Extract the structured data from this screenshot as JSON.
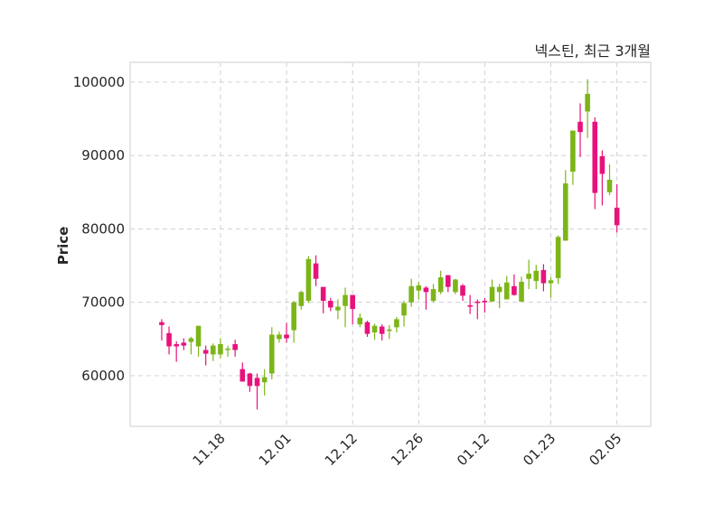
{
  "chart_data": {
    "type": "candlestick",
    "title": "넥스틴, 최근 3개월",
    "ylabel": "Price",
    "xlabel": "",
    "ylim": [
      53100,
      102700
    ],
    "xlim": [
      -4.3,
      66.6
    ],
    "grid": true,
    "colors": {
      "up": "#7cb518",
      "down": "#e8127c",
      "grid": "#cccccc",
      "frame": "#dddddd"
    },
    "yticks": [
      60000,
      70000,
      80000,
      90000,
      100000
    ],
    "xticks": [
      {
        "index": 8,
        "label": "11.18"
      },
      {
        "index": 17,
        "label": "12.01"
      },
      {
        "index": 26,
        "label": "12.12"
      },
      {
        "index": 35,
        "label": "12.26"
      },
      {
        "index": 44,
        "label": "01.12"
      },
      {
        "index": 53,
        "label": "01.23"
      },
      {
        "index": 62,
        "label": "02.05"
      }
    ],
    "ohlc_columns": [
      "open",
      "high",
      "low",
      "close"
    ],
    "candles": [
      [
        67300,
        67700,
        64800,
        66900
      ],
      [
        65800,
        66700,
        62900,
        64000
      ],
      [
        64300,
        64700,
        61900,
        64000
      ],
      [
        64500,
        65100,
        63500,
        64100
      ],
      [
        64600,
        65300,
        62900,
        65100
      ],
      [
        64000,
        66800,
        62600,
        66800
      ],
      [
        63500,
        64100,
        61400,
        63000
      ],
      [
        62900,
        64400,
        62000,
        64100
      ],
      [
        62900,
        65100,
        62400,
        64300
      ],
      [
        63500,
        64100,
        62600,
        63700
      ],
      [
        64300,
        64900,
        62600,
        63500
      ],
      [
        60900,
        61800,
        59200,
        59200
      ],
      [
        60300,
        60400,
        57800,
        58600
      ],
      [
        59700,
        60300,
        55400,
        58600
      ],
      [
        59100,
        60900,
        57300,
        59800
      ],
      [
        60300,
        66600,
        59500,
        65600
      ],
      [
        65000,
        66000,
        64500,
        65600
      ],
      [
        65600,
        67200,
        64500,
        65100
      ],
      [
        66200,
        70200,
        64500,
        70000
      ],
      [
        69500,
        71600,
        69000,
        71400
      ],
      [
        70200,
        76300,
        69900,
        75900
      ],
      [
        75300,
        76400,
        72200,
        73200
      ],
      [
        72100,
        72100,
        68500,
        70200
      ],
      [
        70200,
        70600,
        68800,
        69300
      ],
      [
        68900,
        70400,
        67700,
        69400
      ],
      [
        69500,
        72000,
        66600,
        71000
      ],
      [
        71000,
        71000,
        67000,
        69100
      ],
      [
        67000,
        68500,
        66600,
        67900
      ],
      [
        67300,
        67500,
        65300,
        65700
      ],
      [
        65900,
        67100,
        64900,
        66800
      ],
      [
        66700,
        67000,
        64800,
        65700
      ],
      [
        66100,
        66900,
        65000,
        66300
      ],
      [
        66600,
        68000,
        65900,
        67700
      ],
      [
        68200,
        70200,
        66700,
        69900
      ],
      [
        70000,
        73200,
        69400,
        72200
      ],
      [
        71600,
        72800,
        70400,
        72300
      ],
      [
        72000,
        72200,
        69000,
        71400
      ],
      [
        70200,
        72500,
        70000,
        71800
      ],
      [
        71400,
        74300,
        71100,
        73400
      ],
      [
        73700,
        73700,
        71400,
        72100
      ],
      [
        71400,
        73200,
        71100,
        73100
      ],
      [
        72300,
        72500,
        70200,
        70900
      ],
      [
        69600,
        71000,
        68400,
        69400
      ],
      [
        70100,
        70400,
        67700,
        69900
      ],
      [
        70200,
        70600,
        68600,
        70000
      ],
      [
        70100,
        73100,
        70100,
        72100
      ],
      [
        71400,
        72500,
        69200,
        72100
      ],
      [
        70400,
        73600,
        70400,
        72700
      ],
      [
        72200,
        73800,
        70900,
        71000
      ],
      [
        70100,
        73500,
        70100,
        72800
      ],
      [
        73200,
        75800,
        71800,
        73900
      ],
      [
        72900,
        75100,
        71800,
        74300
      ],
      [
        74400,
        75200,
        71500,
        72600
      ],
      [
        72600,
        73400,
        70600,
        73000
      ],
      [
        73300,
        79100,
        72500,
        78900
      ],
      [
        78400,
        88000,
        78400,
        86200
      ],
      [
        87800,
        93400,
        86000,
        93400
      ],
      [
        94600,
        97100,
        89800,
        93200
      ],
      [
        96000,
        100400,
        92400,
        98400
      ],
      [
        94600,
        95200,
        82700,
        84900
      ],
      [
        89900,
        90700,
        83200,
        87500
      ],
      [
        85000,
        88800,
        84600,
        86700
      ],
      [
        82900,
        86100,
        79500,
        80500
      ]
    ]
  }
}
